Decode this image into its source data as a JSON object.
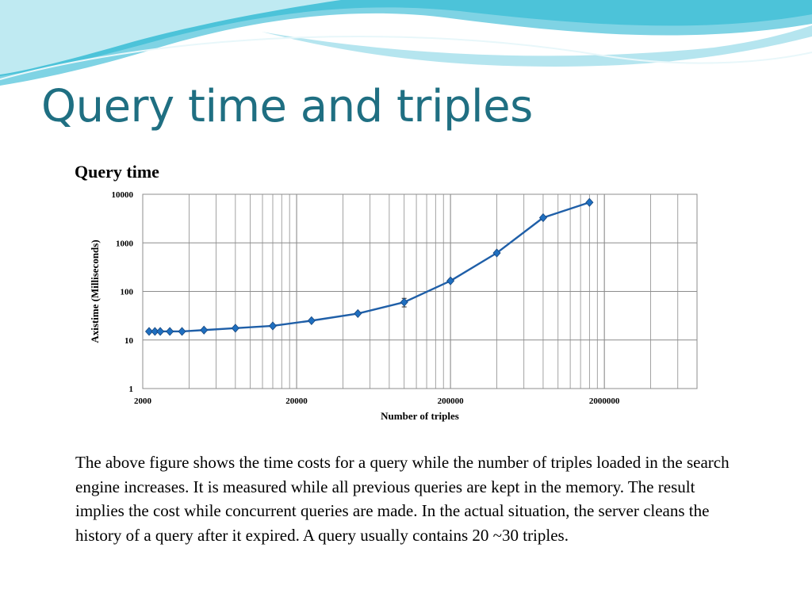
{
  "slide": {
    "title": "Query time and triples",
    "caption": "The above figure shows the time costs for a query while the number of triples loaded in the search engine increases.  It is measured while all previous queries are kept in the memory. The result implies the cost while concurrent queries are made. In the actual situation, the server cleans the history of a query after it expired. A query usually contains 20 ~30 triples."
  },
  "colors": {
    "series": "#1f5fa8",
    "marker": "#1f6fc0",
    "title": "#1f6f82",
    "grid": "#8c8c8c",
    "wave_dark": "#4cc3d9",
    "wave_light": "#bfeaf2"
  },
  "chart_data": {
    "type": "line",
    "title": "Query time",
    "xlabel": "Number of triples",
    "ylabel": "Axistime (Milliseconds)",
    "x_scale": "log",
    "y_scale": "log",
    "xlim": [
      2000,
      8000000
    ],
    "ylim": [
      1,
      10000
    ],
    "x_ticks": [
      "2000",
      "20000",
      "200000",
      "2000000"
    ],
    "y_ticks": [
      "1",
      "10",
      "100",
      "1000",
      "10000"
    ],
    "grid": true,
    "x": [
      2200,
      2400,
      2600,
      3000,
      3600,
      5000,
      8000,
      14000,
      25000,
      50000,
      100000,
      200000,
      400000,
      800000,
      1600000
    ],
    "values": [
      15,
      15,
      15,
      15,
      15,
      16,
      17.5,
      19.5,
      25,
      35,
      60,
      165,
      620,
      3300,
      6800
    ],
    "error_bars": [
      null,
      null,
      null,
      null,
      null,
      null,
      null,
      null,
      null,
      null,
      12,
      null,
      null,
      null,
      null
    ]
  }
}
